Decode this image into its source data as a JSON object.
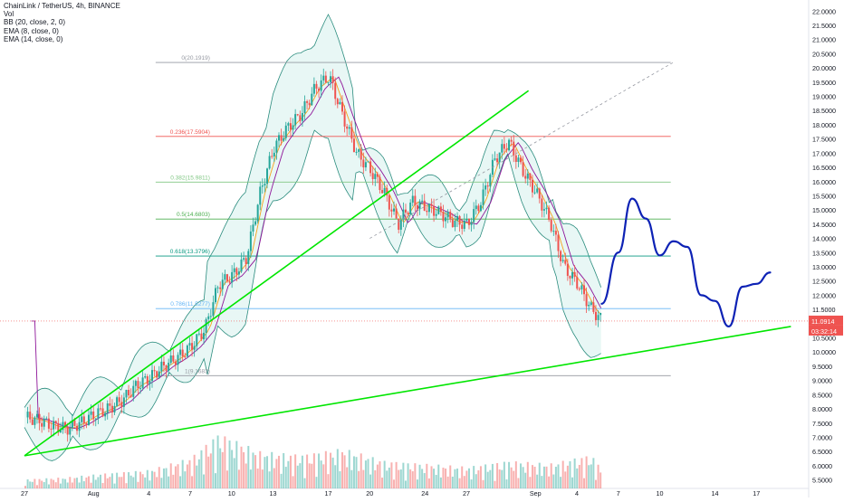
{
  "header": {
    "symbol_line": "ChainLink / TetherUS, 4h, BINANCE",
    "indicators": [
      "Vol",
      "BB (20, close, 2, 0)",
      "EMA (8, close, 0)",
      "EMA (14, close, 0)"
    ]
  },
  "price_tags": {
    "last_price": "11.0914",
    "countdown": "03:32:14",
    "last_color": "#ef5350",
    "countdown_color": "#ef5350"
  },
  "chart_data": {
    "type": "candlestick",
    "y_axis": {
      "range": [
        5.2,
        22.2
      ],
      "ticks": [
        "22.0000",
        "21.5000",
        "21.0000",
        "20.5000",
        "20.0000",
        "19.5000",
        "19.0000",
        "18.5000",
        "18.0000",
        "17.5000",
        "17.0000",
        "16.5000",
        "16.0000",
        "15.5000",
        "15.0000",
        "14.5000",
        "14.0000",
        "13.5000",
        "13.0000",
        "12.5000",
        "12.0000",
        "11.5000",
        "11.0000",
        "10.5000",
        "10.0000",
        "9.5000",
        "9.0000",
        "8.5000",
        "8.0000",
        "7.5000",
        "7.0000",
        "6.5000",
        "6.0000",
        "5.5000"
      ]
    },
    "x_axis": {
      "ticks": [
        {
          "label": "27",
          "day": 0
        },
        {
          "label": "Aug",
          "day": 5
        },
        {
          "label": "4",
          "day": 9
        },
        {
          "label": "7",
          "day": 12
        },
        {
          "label": "10",
          "day": 15
        },
        {
          "label": "13",
          "day": 18
        },
        {
          "label": "17",
          "day": 22
        },
        {
          "label": "20",
          "day": 25
        },
        {
          "label": "24",
          "day": 29
        },
        {
          "label": "27",
          "day": 32
        },
        {
          "label": "Sep",
          "day": 37
        },
        {
          "label": "4",
          "day": 40
        },
        {
          "label": "7",
          "day": 43
        },
        {
          "label": "10",
          "day": 46
        },
        {
          "label": "14",
          "day": 50
        },
        {
          "label": "17",
          "day": 53
        }
      ]
    },
    "fibonacci": [
      {
        "label": "0(20.1919)",
        "value": 20.1919,
        "color": "#9598a1"
      },
      {
        "label": "0.236(17.5904)",
        "value": 17.5904,
        "color": "#ef5350"
      },
      {
        "label": "0.382(15.9811)",
        "value": 15.9811,
        "color": "#81c784"
      },
      {
        "label": "0.5(14.6803)",
        "value": 14.6803,
        "color": "#4caf50"
      },
      {
        "label": "0.618(13.3796)",
        "value": 13.3796,
        "color": "#089981"
      },
      {
        "label": "0.786(11.5277)",
        "value": 11.5277,
        "color": "#64b5f6"
      },
      {
        "label": "1(9.1683)",
        "value": 9.1683,
        "color": "#9598a1"
      }
    ],
    "price_path": [
      [
        0,
        7.7
      ],
      [
        1,
        7.6
      ],
      [
        2,
        7.4
      ],
      [
        3,
        7.3
      ],
      [
        4,
        7.5
      ],
      [
        5,
        7.8
      ],
      [
        6,
        8.0
      ],
      [
        7,
        8.3
      ],
      [
        8,
        8.8
      ],
      [
        9,
        9.1
      ],
      [
        10,
        9.5
      ],
      [
        11,
        9.8
      ],
      [
        12,
        10.2
      ],
      [
        13,
        10.8
      ],
      [
        14,
        12.4
      ],
      [
        15,
        12.7
      ],
      [
        16,
        13.3
      ],
      [
        17,
        15.6
      ],
      [
        18,
        17.2
      ],
      [
        19,
        17.9
      ],
      [
        20,
        18.4
      ],
      [
        21,
        19.3
      ],
      [
        22,
        19.7
      ],
      [
        23,
        18.3
      ],
      [
        24,
        17.0
      ],
      [
        25,
        16.4
      ],
      [
        26,
        15.6
      ],
      [
        27,
        14.5
      ],
      [
        28,
        15.3
      ],
      [
        29,
        15.1
      ],
      [
        30,
        14.9
      ],
      [
        31,
        14.6
      ],
      [
        32,
        14.5
      ],
      [
        33,
        15.3
      ],
      [
        34,
        16.8
      ],
      [
        35,
        17.4
      ],
      [
        36,
        16.4
      ],
      [
        37,
        15.6
      ],
      [
        38,
        14.6
      ],
      [
        39,
        13.0
      ],
      [
        40,
        12.4
      ],
      [
        41,
        11.5
      ],
      [
        41.8,
        11.09
      ]
    ],
    "volume_path": [
      [
        0,
        0.15
      ],
      [
        3,
        0.18
      ],
      [
        6,
        0.25
      ],
      [
        9,
        0.3
      ],
      [
        12,
        0.5
      ],
      [
        14,
        0.9
      ],
      [
        17,
        0.6
      ],
      [
        20,
        0.55
      ],
      [
        23,
        0.65
      ],
      [
        26,
        0.45
      ],
      [
        29,
        0.4
      ],
      [
        32,
        0.35
      ],
      [
        35,
        0.45
      ],
      [
        38,
        0.4
      ],
      [
        41,
        0.55
      ],
      [
        41.8,
        0.3
      ]
    ],
    "trendlines": [
      {
        "name": "rising",
        "color": "#00e600",
        "from": [
          0,
          6.35
        ],
        "to": [
          36.5,
          19.2
        ]
      },
      {
        "name": "lower",
        "color": "#00e600",
        "from": [
          0,
          6.35
        ],
        "to": [
          55.5,
          10.9
        ]
      },
      {
        "name": "dashed",
        "color": "#9598a1",
        "from": [
          25,
          14.0
        ],
        "to": [
          47,
          20.2
        ]
      }
    ],
    "drawn_path": {
      "color": "#0d22b5",
      "points": [
        [
          41.8,
          11.7
        ],
        [
          43,
          13.5
        ],
        [
          44,
          15.4
        ],
        [
          45,
          14.7
        ],
        [
          46,
          13.4
        ],
        [
          47,
          13.9
        ],
        [
          48,
          13.7
        ],
        [
          49,
          12.0
        ],
        [
          50,
          11.8
        ],
        [
          51,
          10.9
        ],
        [
          52,
          12.3
        ],
        [
          53,
          12.4
        ],
        [
          54,
          12.8
        ]
      ]
    }
  }
}
